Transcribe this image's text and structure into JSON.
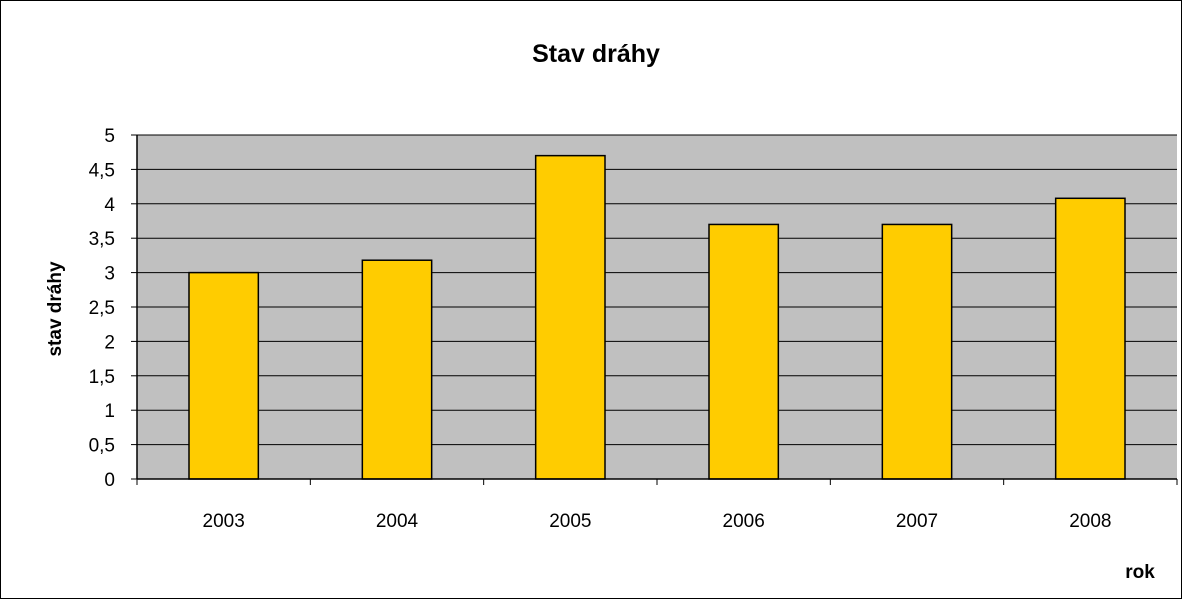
{
  "chart_data": {
    "type": "bar",
    "title": "Stav dráhy",
    "xlabel": "rok",
    "ylabel": "stav dráhy",
    "categories": [
      "2003",
      "2004",
      "2005",
      "2006",
      "2007",
      "2008"
    ],
    "values": [
      3.0,
      3.18,
      4.7,
      3.7,
      3.7,
      4.08
    ],
    "ylim": [
      0,
      5
    ],
    "y_ticks": [
      "0",
      "0,5",
      "1",
      "1,5",
      "2",
      "2,5",
      "3",
      "3,5",
      "4",
      "4,5",
      "5"
    ],
    "grid": true,
    "legend": "none",
    "colors": {
      "bar_fill": "#FFCC00",
      "bar_stroke": "#000000",
      "plot_background": "#C0C0C0",
      "gridline": "#000000"
    }
  }
}
